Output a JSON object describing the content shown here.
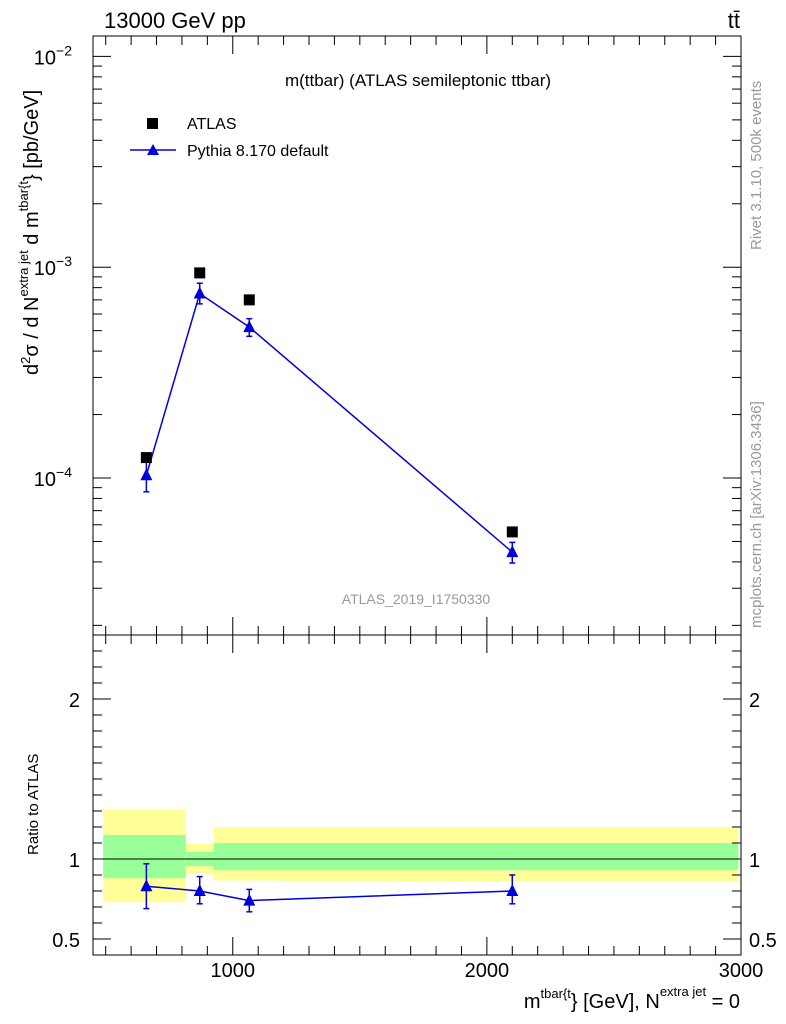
{
  "header": {
    "left": "13000 GeV pp",
    "right": "tt̄"
  },
  "side_labels": {
    "rivet": "Rivet 3.1.10,  500k events",
    "mcplots": "mcplots.cern.ch [arXiv:1306.3436]"
  },
  "colors": {
    "mc": "#0000dd",
    "data": "#000000",
    "band_inner": "#99ff99",
    "band_outer": "#ffff99",
    "watermark": "#999999"
  },
  "chart_data": [
    {
      "type": "scatter",
      "panel": "main",
      "title": "m(ttbar) (ATLAS semileptonic ttbar)",
      "ylabel": {
        "prefix": "d",
        "sup1": "2",
        "mid": "σ /  d N",
        "sup2": "extra jet",
        "mid2": " d m",
        "sup3": "tbar{t",
        "suffix": "} [pb/GeV]"
      },
      "yscale": "log",
      "ylim": [
        1.8e-05,
        0.0125
      ],
      "xlim": [
        450,
        3000
      ],
      "yticks": [
        {
          "value": 0.0001,
          "base": "10",
          "exp": "−4"
        },
        {
          "value": 0.001,
          "base": "10",
          "exp": "−3"
        },
        {
          "value": 0.01,
          "base": "10",
          "exp": "−2"
        }
      ],
      "legend": {
        "position": "top-left",
        "entries": [
          "ATLAS",
          "Pythia 8.170 default"
        ]
      },
      "watermark": "ATLAS_2019_I1750330",
      "series": [
        {
          "name": "ATLAS",
          "marker": "square",
          "x": [
            660,
            870,
            1065,
            2100
          ],
          "y": [
            0.000125,
            0.00094,
            0.0007,
            5.55e-05
          ]
        },
        {
          "name": "Pythia 8.170 default",
          "marker": "triangle",
          "x": [
            660,
            870,
            1065,
            2100
          ],
          "y": [
            0.000103,
            0.00075,
            0.00052,
            4.45e-05
          ],
          "yerr_low": [
            8.6e-05,
            0.00067,
            0.00047,
            3.95e-05
          ],
          "yerr_high": [
            0.000121,
            0.00084,
            0.00057,
            4.95e-05
          ]
        }
      ]
    },
    {
      "type": "scatter",
      "panel": "ratio",
      "ylabel": "Ratio to ATLAS",
      "ylim": [
        0.4,
        2.4
      ],
      "xlim": [
        450,
        3000
      ],
      "yticks_left": [
        "0.5",
        "1",
        "2"
      ],
      "yticks_right": [
        "0.5",
        "1",
        "2"
      ],
      "ytick_values": [
        0.5,
        1,
        2
      ],
      "xticks": [
        {
          "value": 1000,
          "label": "1000"
        },
        {
          "value": 2000,
          "label": "2000"
        },
        {
          "value": 3000,
          "label": "3000"
        }
      ],
      "xlabel": {
        "prefix": "m",
        "sup1": "tbar{t",
        "mid": "} [GeV], N",
        "sup2": "extra jet",
        "suffix": " = 0"
      },
      "bands": [
        {
          "x0": 490,
          "x1": 815,
          "inner": [
            0.88,
            1.15
          ],
          "outer": [
            0.73,
            1.31
          ]
        },
        {
          "x0": 815,
          "x1": 925,
          "inner": [
            0.955,
            1.045
          ],
          "outer": [
            0.905,
            1.095
          ]
        },
        {
          "x0": 925,
          "x1": 1200,
          "inner": [
            0.93,
            1.1
          ],
          "outer": [
            0.865,
            1.2
          ]
        },
        {
          "x0": 1200,
          "x1": 2990,
          "inner": [
            0.93,
            1.1
          ],
          "outer": [
            0.86,
            1.2
          ]
        }
      ],
      "series": [
        {
          "name": "Pythia 8.170 default",
          "marker": "triangle",
          "x": [
            660,
            870,
            1065,
            2100
          ],
          "y": [
            0.83,
            0.8,
            0.74,
            0.8
          ],
          "yerr_low": [
            0.69,
            0.72,
            0.67,
            0.72
          ],
          "yerr_high": [
            0.97,
            0.89,
            0.81,
            0.9
          ]
        }
      ]
    }
  ]
}
